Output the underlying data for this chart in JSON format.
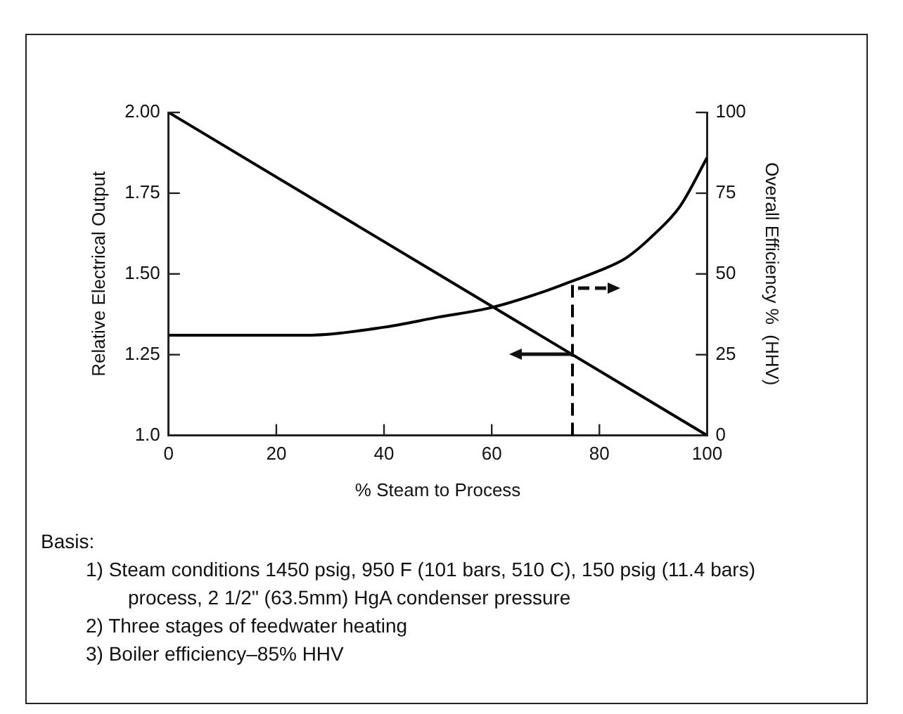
{
  "chart_data": {
    "type": "line",
    "xlabel": "% Steam to Process",
    "ylabel": "Relative Electrical Output",
    "y2label": "Overall Efficiency %  (HHV)",
    "xlim": [
      0,
      100
    ],
    "xticks": [
      0,
      20,
      40,
      60,
      80,
      100
    ],
    "ylim": [
      1,
      2
    ],
    "yticks": [
      {
        "value": 1,
        "label": "1.0"
      },
      1.25,
      {
        "value": 1.5,
        "label": "1.50"
      },
      1.75,
      {
        "value": 2,
        "label": "2.00"
      }
    ],
    "y2lim": [
      0,
      100
    ],
    "y2ticks": [
      0,
      25,
      50,
      75,
      100
    ],
    "grid": false,
    "legend": false,
    "marker": "none",
    "line_style": "solid",
    "series": [
      {
        "color": "#000000",
        "x": [
          0,
          100
        ],
        "values": [
          2,
          1
        ]
      },
      {
        "color": "#000000",
        "axis": "y2",
        "x": [
          0,
          25,
          40,
          50,
          60,
          70,
          75,
          80,
          85,
          90,
          95,
          100
        ],
        "values": [
          31,
          31,
          33.5,
          36.6,
          39.6,
          44.7,
          47.8,
          51,
          55,
          62,
          71,
          86
        ]
      }
    ],
    "ref_lines": [
      {
        "axis": "x",
        "value": 75,
        "color": "#000000",
        "line_style": "dashed"
      }
    ],
    "annotations": [
      "Basis:",
      "1) Steam conditions 1450 psig, 950 F (101 bars, 510 C), 150 psig (11.4 bars) process, 2 1/2\" (63.5mm) HgA condenser pressure",
      "2) Three stages of feedwater heating",
      "3) Boiler efficiency–85% HHV"
    ]
  }
}
